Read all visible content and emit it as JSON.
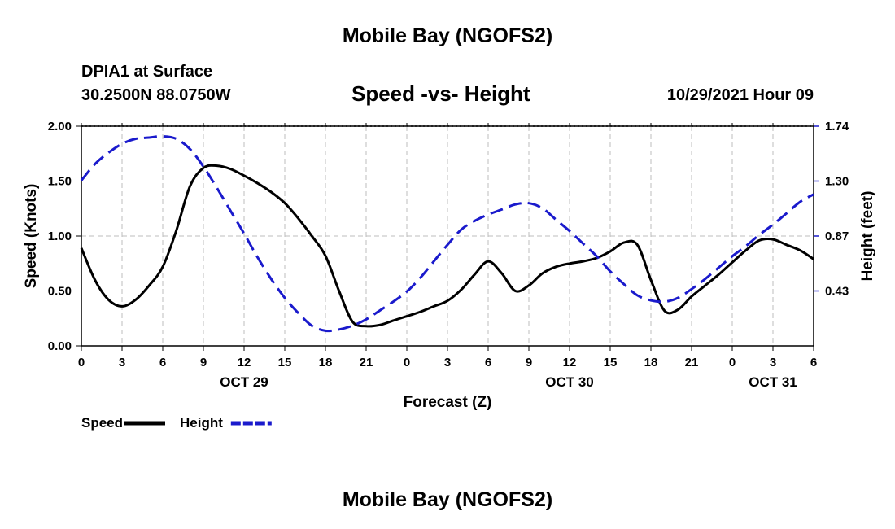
{
  "header": {
    "title": "Mobile Bay (NGOFS2)",
    "station": "DPIA1 at Surface",
    "coords": "30.2500N  88.0750W",
    "subtitle": "Speed -vs- Height",
    "datetime": "10/29/2021 Hour 09"
  },
  "footer": {
    "title": "Mobile Bay (NGOFS2)"
  },
  "chart_data": {
    "type": "line",
    "title": "Speed -vs- Height",
    "xlabel": "Forecast (Z)",
    "ylabel": "Speed (Knots)",
    "y2label": "Height (feet)",
    "xlim": [
      0,
      54
    ],
    "ylim": [
      0,
      2.0
    ],
    "y2lim": [
      0.0,
      1.74
    ],
    "x_ticks": [
      0,
      3,
      6,
      9,
      12,
      15,
      18,
      21,
      24,
      27,
      30,
      33,
      36,
      39,
      42,
      45,
      48,
      51,
      54
    ],
    "x_tick_labels": [
      "0",
      "3",
      "6",
      "9",
      "12",
      "15",
      "18",
      "21",
      "0",
      "3",
      "6",
      "9",
      "12",
      "15",
      "18",
      "21",
      "0",
      "3",
      "6"
    ],
    "date_labels": [
      {
        "x": 12,
        "label": "OCT 29"
      },
      {
        "x": 36,
        "label": "OCT 30"
      },
      {
        "x": 51,
        "label": "OCT 31"
      }
    ],
    "y_ticks": [
      "0.00",
      "0.50",
      "1.00",
      "1.50",
      "2.00"
    ],
    "y2_ticks": [
      "0.43",
      "0.87",
      "1.30",
      "1.74"
    ],
    "grid": true,
    "legend_position": "bottom-left",
    "series": [
      {
        "name": "Speed",
        "axis": "left",
        "color": "#000000",
        "style": "solid",
        "x": [
          0,
          1,
          2,
          3,
          4,
          5,
          6,
          7,
          8,
          9,
          10,
          11,
          12,
          13,
          14,
          15,
          16,
          17,
          18,
          19,
          20,
          21,
          22,
          23,
          24,
          25,
          26,
          27,
          28,
          29,
          30,
          31,
          32,
          33,
          34,
          35,
          36,
          37,
          38,
          39,
          40,
          41,
          42,
          43,
          44,
          45,
          46,
          47,
          48,
          49,
          50,
          51,
          52,
          53,
          54
        ],
        "values": [
          0.89,
          0.6,
          0.42,
          0.36,
          0.42,
          0.55,
          0.72,
          1.05,
          1.45,
          1.62,
          1.64,
          1.61,
          1.55,
          1.48,
          1.4,
          1.3,
          1.16,
          1.0,
          0.82,
          0.5,
          0.22,
          0.18,
          0.19,
          0.23,
          0.27,
          0.31,
          0.36,
          0.41,
          0.51,
          0.65,
          0.77,
          0.66,
          0.5,
          0.55,
          0.66,
          0.72,
          0.75,
          0.77,
          0.8,
          0.86,
          0.94,
          0.92,
          0.6,
          0.32,
          0.33,
          0.45,
          0.55,
          0.65,
          0.76,
          0.87,
          0.96,
          0.97,
          0.92,
          0.87,
          0.79
        ]
      },
      {
        "name": "Height",
        "axis": "right",
        "color": "#1a1acc",
        "style": "dashed",
        "x": [
          0,
          1,
          2,
          3,
          4,
          5,
          6,
          7,
          8,
          9,
          10,
          11,
          12,
          13,
          14,
          15,
          16,
          17,
          18,
          19,
          20,
          21,
          22,
          23,
          24,
          25,
          26,
          27,
          28,
          29,
          30,
          31,
          32,
          33,
          34,
          35,
          36,
          37,
          38,
          39,
          40,
          41,
          42,
          43,
          44,
          45,
          46,
          47,
          48,
          49,
          50,
          51,
          52,
          53,
          54
        ],
        "values": [
          1.31,
          1.44,
          1.53,
          1.6,
          1.64,
          1.65,
          1.66,
          1.64,
          1.56,
          1.42,
          1.25,
          1.07,
          0.89,
          0.7,
          0.53,
          0.38,
          0.26,
          0.16,
          0.12,
          0.13,
          0.16,
          0.21,
          0.28,
          0.35,
          0.43,
          0.54,
          0.67,
          0.8,
          0.92,
          0.99,
          1.04,
          1.08,
          1.12,
          1.13,
          1.09,
          1.0,
          0.91,
          0.81,
          0.71,
          0.59,
          0.49,
          0.4,
          0.36,
          0.35,
          0.38,
          0.45,
          0.53,
          0.62,
          0.71,
          0.79,
          0.88,
          0.96,
          1.05,
          1.14,
          1.2
        ]
      }
    ]
  }
}
